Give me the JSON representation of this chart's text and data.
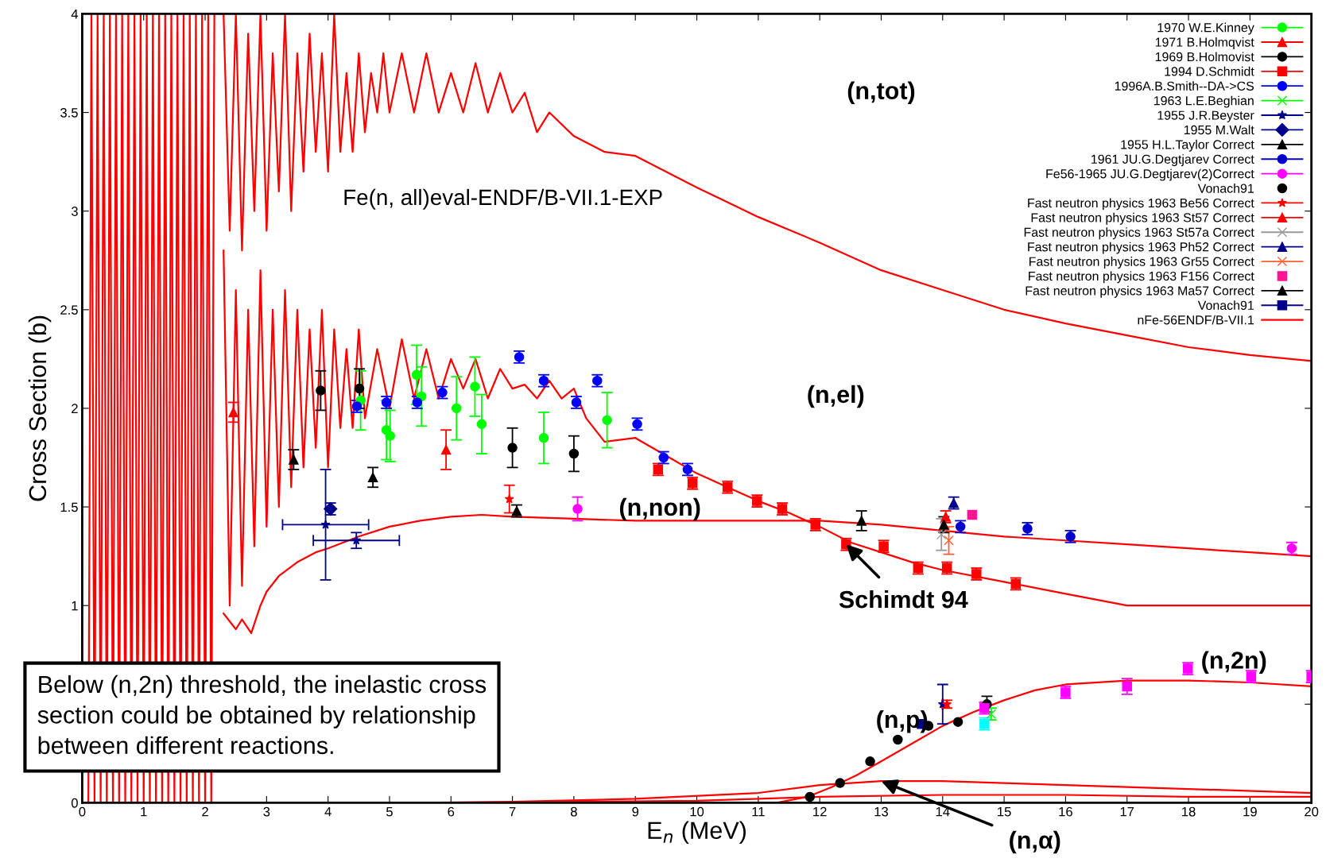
{
  "chart_data": {
    "type": "line",
    "xlabel": "E$_{n}$ (MeV)",
    "ylabel": "Cross Section (b)",
    "xlim": [
      0,
      20
    ],
    "xticks": [
      0,
      1,
      2,
      3,
      4,
      5,
      6,
      7,
      8,
      9,
      10,
      11,
      12,
      13,
      14,
      15,
      16,
      17,
      18,
      19,
      20
    ],
    "ylim": [
      0,
      4
    ],
    "yticks": [
      0,
      {
        "value": 0.5,
        "label": null
      },
      1,
      1.5,
      2,
      2.5,
      3,
      3.5,
      4
    ],
    "grid": false,
    "legend": "top right",
    "annotations": [
      "(n,tot)",
      "(n,el)",
      "(n,non)",
      {
        "text": "Schimdt 94",
        "x": 12.43,
        "y": 1.31
      },
      "(n,2n)",
      "(n,p)",
      {
        "text": "(n,α)",
        "x": 13.0,
        "y": 0.11
      },
      "Fe(n, all)eval-ENDF/B-VII.1-EXP",
      "Below (n,2n) threshold, the inelastic cross\nsection could be obtained by relationship\nbetween different reactions."
    ],
    "series": [
      {
        "type": "scatter",
        "name": "1970 W.E.Kinney",
        "color": "#00ff00",
        "marker": "circle",
        "x": [
          4.53,
          4.95,
          5.01,
          5.44,
          5.52,
          6.09,
          6.39,
          6.5,
          7.51,
          8.54
        ],
        "values": [
          2.04,
          1.89,
          1.86,
          2.17,
          2.06,
          2.0,
          2.11,
          1.92,
          1.85,
          1.94
        ],
        "errors": [
          0.15,
          0.15,
          0.13,
          0.15,
          0.15,
          0.16,
          0.15,
          0.15,
          0.13,
          0.14
        ]
      },
      {
        "type": "scatter",
        "name": "1971 B.Holmqvist",
        "color": "#ff0000",
        "marker": "triangle",
        "x": [
          2.46,
          5.92
        ],
        "values": [
          1.98,
          1.79
        ],
        "errors": [
          0.05,
          0.1
        ]
      },
      {
        "type": "scatter",
        "name": "1969 B.Holmovist",
        "color": "#000000",
        "marker": "circle",
        "x": [
          3.88,
          4.51,
          7.0,
          8.0,
          14.72
        ],
        "values": [
          2.09,
          2.1,
          1.8,
          1.77,
          0.5
        ],
        "errors": [
          0.1,
          0.1,
          0.1,
          0.09,
          0.04
        ]
      },
      {
        "type": "scatter",
        "name": "1994 D.Schmidt",
        "color": "#ff0000",
        "marker": "square",
        "x": [
          9.37,
          9.93,
          10.5,
          10.98,
          11.39,
          11.93,
          12.43,
          13.04,
          13.6,
          14.07,
          14.55,
          15.19
        ],
        "values": [
          1.69,
          1.62,
          1.6,
          1.53,
          1.49,
          1.41,
          1.31,
          1.3,
          1.19,
          1.19,
          1.16,
          1.11
        ],
        "errors": [
          0.03,
          0.03,
          0.03,
          0.03,
          0.03,
          0.03,
          0.03,
          0.03,
          0.03,
          0.03,
          0.03,
          0.03
        ]
      },
      {
        "type": "scatter",
        "name": "1996A.B.Smith--DA->CS",
        "color": "#0000ff",
        "marker": "circle",
        "x": [
          4.47,
          4.95,
          5.45,
          5.86,
          7.11,
          7.51,
          8.04,
          8.38,
          9.03,
          9.46,
          9.85
        ],
        "values": [
          2.01,
          2.03,
          2.03,
          2.08,
          2.26,
          2.14,
          2.03,
          2.14,
          1.92,
          1.75,
          1.69
        ],
        "errors": [
          0.03,
          0.03,
          0.03,
          0.03,
          0.03,
          0.03,
          0.03,
          0.03,
          0.03,
          0.03,
          0.03
        ]
      },
      {
        "type": "scatter",
        "name": "1963 L.E.Beghian",
        "color": "#00ff00",
        "marker": "cross",
        "x": [
          14.79
        ],
        "values": [
          0.45
        ],
        "errors": [
          0.03
        ]
      },
      {
        "type": "scatter",
        "name": "1955 J.R.Beyster",
        "color": "#00008b",
        "marker": "star",
        "x": [
          3.96,
          4.46,
          14.0
        ],
        "values": [
          1.41,
          1.33,
          0.5
        ],
        "errors": [
          0.28,
          0.04,
          0.1
        ],
        "xerrors": [
          0.7,
          0.7,
          null
        ]
      },
      {
        "type": "scatter",
        "name": "1955 M.Walt",
        "color": "#00008b",
        "marker": "diamond",
        "x": [
          4.04
        ],
        "values": [
          1.49
        ],
        "errors": [
          0.03
        ]
      },
      {
        "type": "scatter",
        "name": "1955 H.L.Taylor Correct",
        "color": "#000000",
        "marker": "triangle",
        "x": [
          3.44,
          4.73,
          7.07,
          12.68
        ],
        "values": [
          1.74,
          1.65,
          1.48,
          1.43
        ],
        "errors": [
          0.05,
          0.05,
          0.03,
          0.05
        ]
      },
      {
        "type": "scatter",
        "name": "1961 JU.G.Degtjarev Correct",
        "color": "#0000cc",
        "marker": "circle",
        "x": [
          14.29,
          15.38,
          16.08
        ],
        "values": [
          1.4,
          1.39,
          1.35
        ],
        "errors": [
          0.03,
          0.03,
          0.03
        ]
      },
      {
        "type": "scatter",
        "name": "Fe56-1965 JU.G.Degtjarev(2)Correct",
        "color": "#ff00ff",
        "marker": "circle",
        "x": [
          8.06,
          19.68
        ],
        "values": [
          1.49,
          1.29
        ],
        "errors": [
          0.06,
          0.03
        ]
      },
      {
        "type": "scatter",
        "name": "Vonach91",
        "color": "#000000",
        "marker": "circle",
        "x": [
          11.84,
          12.33,
          12.82,
          13.27,
          13.77,
          14.25
        ],
        "values": [
          0.03,
          0.1,
          0.21,
          0.32,
          0.39,
          0.41
        ]
      },
      {
        "type": "scatter",
        "name": "Fast neutron physics 1963 Be56 Correct",
        "color": "#ff0000",
        "marker": "star",
        "x": [
          6.95,
          14.07
        ],
        "values": [
          1.54,
          0.5
        ],
        "errors": [
          0.07,
          0.02
        ]
      },
      {
        "type": "scatter",
        "name": "Fast neutron physics 1963 St57 Correct",
        "color": "#ff0000",
        "marker": "triangle",
        "x": [
          14.05
        ],
        "values": [
          1.45
        ],
        "errors": [
          0.03
        ]
      },
      {
        "type": "scatter",
        "name": "Fast neutron physics 1963 St57a Correct",
        "color": "#999999",
        "marker": "cross",
        "x": [
          13.98
        ],
        "values": [
          1.36
        ],
        "errors": [
          0.08
        ]
      },
      {
        "type": "scatter",
        "name": "Fast neutron physics 1963 Ph52 Correct",
        "color": "#00008b",
        "marker": "triangle",
        "x": [
          14.18
        ],
        "values": [
          1.52
        ],
        "errors": [
          0.03
        ]
      },
      {
        "type": "scatter",
        "name": "Fast neutron physics 1963 Gr55 Correct",
        "color": "#ff6030",
        "marker": "cross",
        "x": [
          14.1
        ],
        "values": [
          1.33
        ],
        "errors": [
          0.07
        ]
      },
      {
        "type": "scatter",
        "name": "Fast neutron physics 1963 F156 Correct",
        "color": "#ff1493",
        "marker": "square",
        "x": [
          14.48
        ],
        "values": [
          1.46
        ]
      },
      {
        "type": "scatter",
        "name": "Fast neutron physics 1963 Ma57 Correct",
        "color": "#000000",
        "marker": "triangle",
        "x": [
          14.02
        ],
        "values": [
          1.41
        ],
        "errors": [
          0.04
        ]
      },
      {
        "type": "scatter",
        "name": "Vonach91",
        "color": "#00008b",
        "marker": "square",
        "x": [
          13.66
        ],
        "values": [
          0.4
        ],
        "errors": [
          0.01
        ]
      },
      {
        "type": "scatter",
        "color": "#ff00ff",
        "marker": "square",
        "x": [
          14.68,
          16.0,
          17.0,
          17.99,
          19.02,
          20.0
        ],
        "values": [
          0.48,
          0.56,
          0.59,
          0.68,
          0.64,
          0.64
        ],
        "errors": [
          0.03,
          0.03,
          0.04,
          0.03,
          0.03,
          0.03
        ]
      },
      {
        "type": "scatter",
        "color": "#00ffff",
        "marker": "square",
        "x": [
          14.68
        ],
        "values": [
          0.4
        ],
        "errors": [
          0.03
        ]
      },
      {
        "name": "nFe-56ENDF/B-VII.1",
        "color": "#ff0000",
        "marker": "none",
        "line_style": "solid",
        "x": [
          0.1,
          0.15,
          0.2,
          0.25,
          0.3,
          0.35,
          0.4,
          0.45,
          0.5,
          0.55,
          0.6,
          0.65,
          0.7,
          0.75,
          0.8,
          0.85,
          0.9,
          0.95,
          1.0,
          1.05,
          1.1,
          1.15,
          1.2,
          1.25,
          1.3,
          1.35,
          1.4,
          1.45,
          1.5,
          1.55,
          1.6,
          1.65,
          1.7,
          1.75,
          1.8,
          1.85,
          1.9,
          1.95,
          2.0,
          2.05,
          2.1,
          2.15,
          2.2,
          2.25,
          2.3,
          2.4,
          2.5,
          2.6,
          2.7,
          2.8,
          2.9,
          3.0,
          3.1,
          3.2,
          3.3,
          3.4,
          3.5,
          3.6,
          3.7,
          3.8,
          3.9,
          4.0,
          4.1,
          4.2,
          4.3,
          4.4,
          4.5,
          4.6,
          4.7,
          4.8,
          4.9,
          5.0,
          5.2,
          5.4,
          5.6,
          5.8,
          6.0,
          6.2,
          6.4,
          6.6,
          6.8,
          7.0,
          7.2,
          7.4,
          7.6,
          8.0,
          8.5,
          9,
          10,
          11,
          12,
          13,
          14,
          15,
          16,
          17,
          18,
          19,
          20
        ],
        "values": [
          0,
          4,
          0,
          4,
          0,
          4,
          0,
          4,
          0,
          4,
          0,
          4,
          0,
          4,
          0,
          4,
          0,
          4,
          0,
          4,
          0,
          4,
          0,
          4,
          0,
          4,
          0,
          4,
          0,
          4,
          0,
          4,
          0,
          4,
          0,
          4,
          0,
          4,
          0,
          4,
          0,
          4,
          null,
          4,
          4,
          2.9,
          4,
          2.8,
          3.9,
          3.0,
          4,
          2.9,
          3.8,
          3.1,
          4,
          3.0,
          3.8,
          3.2,
          3.9,
          3.3,
          3.8,
          3.2,
          4,
          3.3,
          3.7,
          3.3,
          3.8,
          3.4,
          3.7,
          3.5,
          3.8,
          3.5,
          3.8,
          3.5,
          3.8,
          3.5,
          3.7,
          3.5,
          3.75,
          3.5,
          3.7,
          3.5,
          3.6,
          3.4,
          3.5,
          3.38,
          3.3,
          3.28,
          3.12,
          2.97,
          2.84,
          2.7,
          2.6,
          2.5,
          2.43,
          2.37,
          2.31,
          2.27,
          2.24
        ]
      },
      {
        "color": "#ff0000",
        "marker": "none",
        "line_style": "solid",
        "x": [
          2.3,
          2.4,
          2.5,
          2.6,
          2.7,
          2.8,
          2.9,
          3.0,
          3.1,
          3.2,
          3.3,
          3.4,
          3.5,
          3.6,
          3.7,
          3.8,
          3.9,
          4.0,
          4.1,
          4.2,
          4.3,
          4.4,
          4.5,
          4.6,
          4.8,
          5.0,
          5.2,
          5.4,
          5.6,
          5.8,
          6.0,
          6.2,
          6.4,
          6.6,
          6.8,
          7.0,
          7.2,
          7.4,
          7.6,
          7.8,
          8.0,
          8.2,
          8.5,
          9.0,
          9.5,
          10,
          10.5,
          11,
          11.5,
          12,
          12.5,
          13,
          13.5,
          14,
          15,
          16,
          17,
          18,
          19,
          20
        ],
        "values": [
          2.8,
          1.0,
          2.6,
          1.1,
          2.5,
          1.3,
          2.7,
          1.4,
          2.5,
          1.5,
          2.6,
          1.6,
          2.5,
          1.7,
          2.4,
          1.8,
          2.5,
          1.7,
          2.4,
          1.9,
          2.3,
          1.9,
          2.4,
          1.95,
          2.3,
          2.0,
          2.35,
          2.05,
          2.3,
          2.05,
          2.25,
          2.1,
          2.25,
          2.05,
          2.2,
          2.1,
          2.12,
          2.05,
          2.14,
          2.05,
          2.1,
          1.95,
          1.83,
          1.85,
          1.76,
          1.67,
          1.6,
          1.53,
          1.47,
          1.4,
          1.32,
          1.27,
          1.22,
          1.18,
          1.12,
          1.06,
          1.0,
          1.0,
          1.0,
          1.0
        ]
      },
      {
        "color": "#ff0000",
        "marker": "none",
        "line_style": "solid",
        "x": [
          2.3,
          2.5,
          2.6,
          2.75,
          2.9,
          3.0,
          3.2,
          3.5,
          3.8,
          4.0,
          4.5,
          5.0,
          5.5,
          6.0,
          6.5,
          7.0,
          8.0,
          9,
          10,
          11,
          12,
          13,
          14,
          15,
          16,
          17,
          18,
          19,
          20
        ],
        "values": [
          0.96,
          0.88,
          0.93,
          0.86,
          1.0,
          1.07,
          1.15,
          1.22,
          1.27,
          1.29,
          1.35,
          1.4,
          1.43,
          1.45,
          1.46,
          1.45,
          1.44,
          1.43,
          1.43,
          1.43,
          1.43,
          1.41,
          1.38,
          1.35,
          1.33,
          1.31,
          1.29,
          1.27,
          1.25
        ]
      },
      {
        "color": "#ff0000",
        "marker": "none",
        "line_style": "solid",
        "x": [
          11.3,
          11.8,
          12.2,
          12.6,
          13,
          13.5,
          14,
          14.5,
          15,
          15.5,
          16,
          17,
          18,
          19,
          20
        ],
        "values": [
          0,
          0.03,
          0.08,
          0.14,
          0.21,
          0.3,
          0.39,
          0.46,
          0.52,
          0.57,
          0.6,
          0.62,
          0.62,
          0.61,
          0.59
        ]
      },
      {
        "color": "#ff0000",
        "marker": "none",
        "line_style": "solid",
        "x": [
          5.5,
          7,
          9,
          11,
          12,
          13,
          14,
          15,
          16,
          18,
          20
        ],
        "values": [
          0,
          0.005,
          0.02,
          0.05,
          0.09,
          0.11,
          0.11,
          0.1,
          0.09,
          0.07,
          0.05
        ]
      },
      {
        "color": "#ff0000",
        "marker": "none",
        "line_style": "solid",
        "x": [
          6,
          8,
          10,
          12,
          14,
          16,
          18,
          20
        ],
        "values": [
          0,
          0.005,
          0.01,
          0.03,
          0.04,
          0.04,
          0.03,
          0.03
        ]
      }
    ]
  }
}
